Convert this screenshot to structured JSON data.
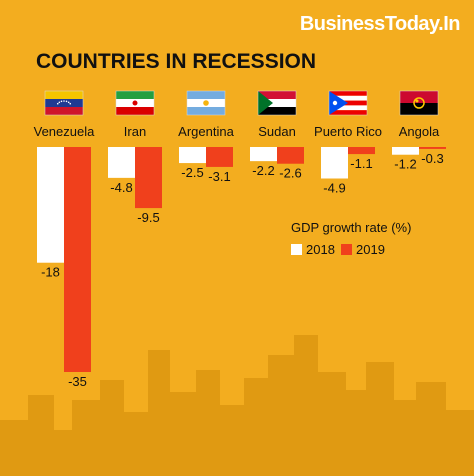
{
  "brand": "BusinessToday.In",
  "colors": {
    "background": "#f3ad1f",
    "series_2018": "#ffffff",
    "series_2019": "#f0401c",
    "skyline": "#e09a12"
  },
  "chart_data": {
    "type": "bar",
    "title": "COUNTRIES IN RECESSION",
    "legend_title": "GDP growth rate (%)",
    "legend_placement": "right",
    "categories": [
      "Venezuela",
      "Iran",
      "Argentina",
      "Sudan",
      "Puerto Rico",
      "Angola"
    ],
    "series": [
      {
        "name": "2018",
        "values": [
          -18,
          -4.8,
          -2.5,
          -2.2,
          -4.9,
          -1.2
        ]
      },
      {
        "name": "2019",
        "values": [
          -35,
          -9.5,
          -3.1,
          -2.6,
          -1.1,
          -0.3
        ]
      }
    ],
    "value_labels": {
      "2018": [
        "-18",
        "-4.8",
        "-2.5",
        "-2.2",
        "-4.9",
        "-1.2"
      ],
      "2019": [
        "-35",
        "-9.5",
        "-3.1",
        "-2.6",
        "-1.1",
        "-0.3"
      ]
    },
    "ylim": [
      -35,
      0
    ],
    "grid": false,
    "xlabel": "",
    "ylabel": ""
  },
  "flags": [
    "venezuela-flag-icon",
    "iran-flag-icon",
    "argentina-flag-icon",
    "sudan-flag-icon",
    "puerto-rico-flag-icon",
    "angola-flag-icon"
  ]
}
